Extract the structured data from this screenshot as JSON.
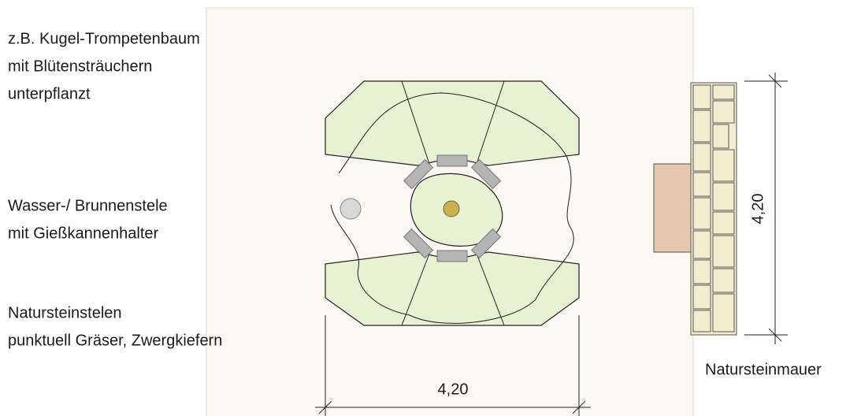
{
  "labels": [
    {
      "lines": [
        "z.B. Kugel-Trompetenbaum",
        "mit Blütensträuchern",
        "unterpflanzt"
      ]
    },
    {
      "lines": [
        "Wasser-/ Brunnenstele",
        "mit Gießkannenhalter"
      ]
    },
    {
      "lines": [
        "Natursteinstelen",
        "punktuell Gräser, Zwergkiefern"
      ]
    }
  ],
  "dimensions": {
    "width": "4,20",
    "height": "4,20"
  },
  "wall_label": "Natursteinmauer"
}
